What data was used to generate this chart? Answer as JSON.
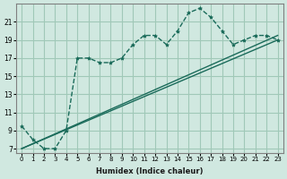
{
  "xlabel": "Humidex (Indice chaleur)",
  "ylabel": "",
  "bg_color": "#d0e8e0",
  "line_color": "#1a6b5a",
  "grid_color": "#a0c8b8",
  "x_values": [
    0,
    1,
    2,
    3,
    4,
    5,
    6,
    7,
    8,
    9,
    10,
    11,
    12,
    13,
    14,
    15,
    16,
    17,
    18,
    19,
    20,
    21,
    22,
    23
  ],
  "y_main": [
    9.5,
    8.0,
    7.0,
    7.0,
    9.0,
    17.0,
    17.0,
    16.5,
    16.5,
    17.0,
    18.5,
    19.5,
    19.5,
    18.5,
    20.0,
    22.0,
    22.5,
    21.5,
    20.0,
    18.5,
    19.0,
    19.5,
    19.5,
    19.0
  ],
  "diag_line1": [
    7.0,
    19.5
  ],
  "diag_line2": [
    7.0,
    19.0
  ],
  "xlim": [
    -0.5,
    23.5
  ],
  "ylim": [
    6.5,
    23
  ],
  "yticks": [
    7,
    9,
    11,
    13,
    15,
    17,
    19,
    21
  ],
  "xticks": [
    0,
    1,
    2,
    3,
    4,
    5,
    6,
    7,
    8,
    9,
    10,
    11,
    12,
    13,
    14,
    15,
    16,
    17,
    18,
    19,
    20,
    21,
    22,
    23
  ]
}
